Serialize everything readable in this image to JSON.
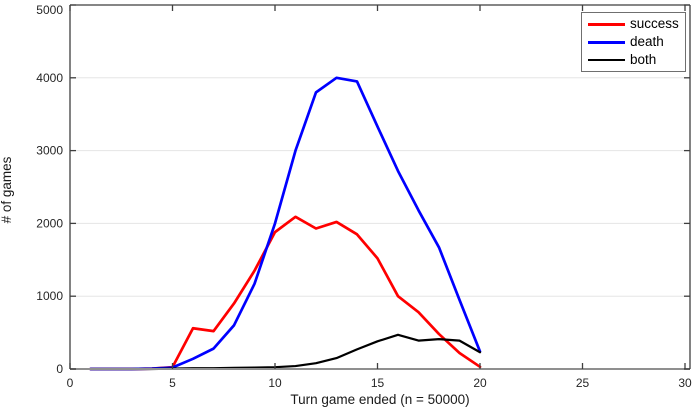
{
  "figure": {
    "background": "#ffffff"
  },
  "chart_data": {
    "type": "line",
    "title": "",
    "xlabel": "Turn game ended (n = 50000)",
    "ylabel": "# of games",
    "xlim": [
      0,
      30
    ],
    "ylim": [
      0,
      5000
    ],
    "xticks": [
      0,
      5,
      10,
      15,
      20,
      25,
      30
    ],
    "yticks": [
      0,
      1000,
      2000,
      3000,
      4000,
      5000
    ],
    "grid": "horizontal-only",
    "gridline_color": "#e5e5e5",
    "axis_color": "#3f3f3f",
    "baseline_color": "#8f8f8f",
    "tick_label_color": "#262626",
    "legend": {
      "position": "top-right",
      "border_color": "#6f6f6f",
      "background": "#ffffff"
    },
    "x": [
      1,
      2,
      3,
      4,
      5,
      6,
      7,
      8,
      9,
      10,
      11,
      12,
      13,
      14,
      15,
      16,
      17,
      18,
      19,
      20
    ],
    "series": [
      {
        "name": "success",
        "color": "#ff0000",
        "line_width": 2.7,
        "values": [
          0,
          0,
          0,
          5,
          25,
          560,
          520,
          900,
          1350,
          1880,
          2090,
          1930,
          2020,
          1850,
          1520,
          1000,
          780,
          480,
          220,
          30
        ]
      },
      {
        "name": "death",
        "color": "#0000ff",
        "line_width": 2.7,
        "values": [
          0,
          0,
          0,
          5,
          20,
          140,
          280,
          600,
          1170,
          2000,
          3000,
          3800,
          4000,
          3950,
          3330,
          2720,
          2180,
          1670,
          950,
          240
        ]
      },
      {
        "name": "both",
        "color": "#000000",
        "line_width": 2.2,
        "values": [
          0,
          0,
          0,
          0,
          5,
          10,
          10,
          15,
          20,
          25,
          40,
          80,
          150,
          270,
          380,
          470,
          390,
          410,
          390,
          230
        ]
      }
    ]
  }
}
